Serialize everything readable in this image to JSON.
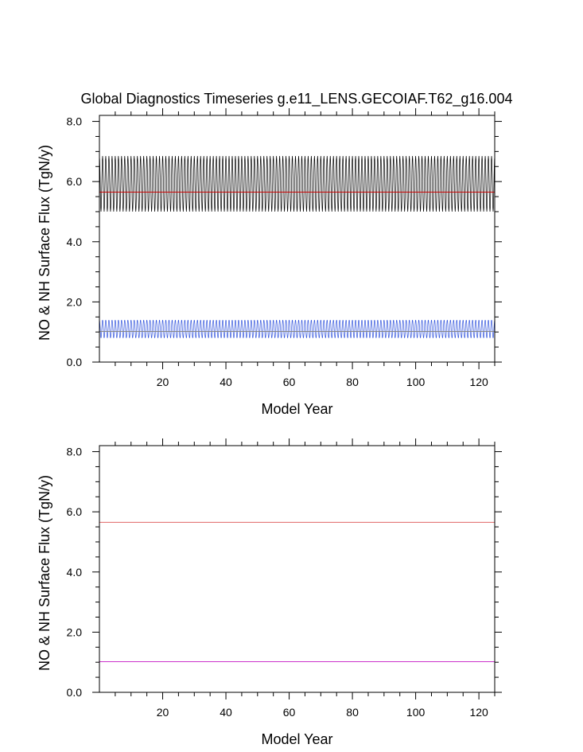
{
  "chart_data": [
    {
      "type": "line",
      "title": "Global Diagnostics Timeseries g.e11_LENS.GECOIAF.T62_g16.004",
      "xlabel": "Model Year",
      "ylabel": "NO & NH Surface Flux (TgN/y)",
      "xlim": [
        0,
        125
      ],
      "ylim": [
        0,
        8.2
      ],
      "x_ticks": [
        20,
        40,
        60,
        80,
        100,
        120
      ],
      "y_ticks": [
        "0.0",
        "2.0",
        "4.0",
        "6.0",
        "8.0"
      ],
      "series": [
        {
          "color": "#000000",
          "kind": "seasonal",
          "min": 5.0,
          "max": 6.85,
          "mean": 5.65
        },
        {
          "color": "#cc0000",
          "kind": "annual-mean",
          "value": 5.65
        },
        {
          "color": "#3355dd",
          "kind": "seasonal",
          "min": 0.8,
          "max": 1.4,
          "mean": 1.02
        },
        {
          "color": "#888888",
          "kind": "annual-mean",
          "value": 1.02
        }
      ]
    },
    {
      "type": "line",
      "title": "",
      "xlabel": "Model Year",
      "ylabel": "NO & NH Surface Flux (TgN/y)",
      "xlim": [
        0,
        125
      ],
      "ylim": [
        0,
        8.2
      ],
      "x_ticks": [
        20,
        40,
        60,
        80,
        100,
        120
      ],
      "y_ticks": [
        "0.0",
        "2.0",
        "4.0",
        "6.0",
        "8.0"
      ],
      "series": [
        {
          "color": "#e06666",
          "kind": "annual-mean",
          "value": 5.65
        },
        {
          "color": "#cc33cc",
          "kind": "annual-mean",
          "value": 1.02
        }
      ]
    }
  ]
}
